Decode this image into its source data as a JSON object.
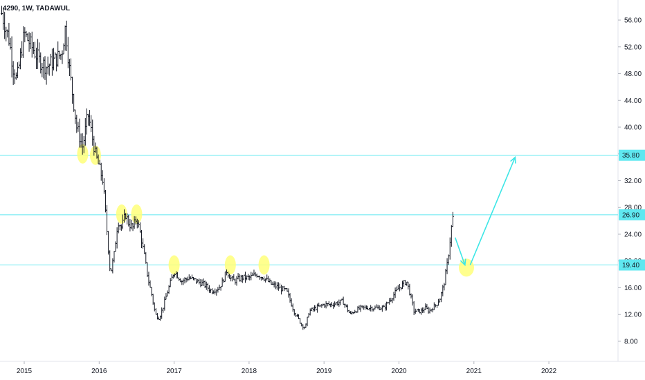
{
  "header": {
    "symbol_label": "4290, 1W, TADAWUL"
  },
  "chart_data": {
    "type": "ohlc",
    "interval": "1W",
    "y_axis": {
      "ticks": [
        "56.00",
        "52.00",
        "48.00",
        "44.00",
        "40.00",
        "36.00",
        "32.00",
        "28.00",
        "24.00",
        "20.00",
        "16.00",
        "12.00",
        "8.00"
      ],
      "ylim": [
        5,
        59
      ]
    },
    "x_axis": {
      "labels": [
        "2015",
        "2016",
        "2017",
        "2018",
        "2019",
        "2020",
        "2021",
        "2022"
      ]
    },
    "horizontal_levels": [
      {
        "value": 35.8,
        "label": "35.80"
      },
      {
        "value": 26.9,
        "label": "26.90"
      },
      {
        "value": 19.4,
        "label": "19.40"
      }
    ],
    "price_path": [
      [
        2014.7,
        57.0
      ],
      [
        2014.8,
        53.0
      ],
      [
        2014.85,
        49.0
      ],
      [
        2014.9,
        47.0
      ],
      [
        2015.0,
        54.0
      ],
      [
        2015.1,
        52.0
      ],
      [
        2015.2,
        50.0
      ],
      [
        2015.3,
        49.0
      ],
      [
        2015.4,
        50.0
      ],
      [
        2015.5,
        51.0
      ],
      [
        2015.55,
        55.0
      ],
      [
        2015.6,
        49.0
      ],
      [
        2015.7,
        40.0
      ],
      [
        2015.78,
        37.0
      ],
      [
        2015.85,
        42.0
      ],
      [
        2015.9,
        39.0
      ],
      [
        2015.95,
        36.0
      ],
      [
        2016.0,
        34.0
      ],
      [
        2016.05,
        32.0
      ],
      [
        2016.1,
        25.0
      ],
      [
        2016.15,
        18.0
      ],
      [
        2016.2,
        21.0
      ],
      [
        2016.25,
        26.0
      ],
      [
        2016.3,
        25.0
      ],
      [
        2016.35,
        27.0
      ],
      [
        2016.4,
        25.5
      ],
      [
        2016.45,
        25.0
      ],
      [
        2016.5,
        26.5
      ],
      [
        2016.55,
        24.0
      ],
      [
        2016.6,
        21.0
      ],
      [
        2016.65,
        17.5
      ],
      [
        2016.7,
        15.0
      ],
      [
        2016.75,
        12.0
      ],
      [
        2016.8,
        11.5
      ],
      [
        2016.85,
        13.0
      ],
      [
        2016.9,
        15.0
      ],
      [
        2017.0,
        18.5
      ],
      [
        2017.1,
        17.0
      ],
      [
        2017.2,
        17.5
      ],
      [
        2017.3,
        17.0
      ],
      [
        2017.4,
        16.5
      ],
      [
        2017.5,
        15.5
      ],
      [
        2017.6,
        16.0
      ],
      [
        2017.65,
        17.0
      ],
      [
        2017.7,
        18.5
      ],
      [
        2017.75,
        17.5
      ],
      [
        2017.8,
        17.0
      ],
      [
        2017.9,
        17.5
      ],
      [
        2018.0,
        17.5
      ],
      [
        2018.1,
        18.0
      ],
      [
        2018.2,
        17.5
      ],
      [
        2018.3,
        16.5
      ],
      [
        2018.4,
        16.0
      ],
      [
        2018.5,
        15.5
      ],
      [
        2018.6,
        12.5
      ],
      [
        2018.7,
        10.5
      ],
      [
        2018.75,
        10.0
      ],
      [
        2018.8,
        12.5
      ],
      [
        2018.9,
        13.0
      ],
      [
        2019.0,
        13.5
      ],
      [
        2019.1,
        13.5
      ],
      [
        2019.2,
        13.8
      ],
      [
        2019.25,
        14.0
      ],
      [
        2019.3,
        13.0
      ],
      [
        2019.35,
        12.0
      ],
      [
        2019.4,
        12.5
      ],
      [
        2019.5,
        13.0
      ],
      [
        2019.6,
        13.0
      ],
      [
        2019.7,
        13.0
      ],
      [
        2019.8,
        13.0
      ],
      [
        2019.9,
        14.5
      ],
      [
        2020.0,
        16.0
      ],
      [
        2020.1,
        17.0
      ],
      [
        2020.15,
        15.0
      ],
      [
        2020.2,
        12.5
      ],
      [
        2020.3,
        12.5
      ],
      [
        2020.35,
        13.0
      ],
      [
        2020.4,
        12.5
      ],
      [
        2020.45,
        13.0
      ],
      [
        2020.5,
        13.5
      ],
      [
        2020.55,
        14.5
      ],
      [
        2020.6,
        16.5
      ],
      [
        2020.65,
        20.0
      ],
      [
        2020.7,
        25.0
      ],
      [
        2020.72,
        26.5
      ]
    ],
    "annotations": {
      "highlight_ellipses": [
        [
          2015.78,
          36.0
        ],
        [
          2015.95,
          35.8
        ],
        [
          2016.3,
          27.0
        ],
        [
          2016.5,
          27.0
        ],
        [
          2017.0,
          19.4
        ],
        [
          2017.75,
          19.4
        ],
        [
          2018.2,
          19.4
        ],
        [
          2020.9,
          19.0
        ]
      ],
      "arrows": [
        {
          "from": [
            2020.75,
            23.5
          ],
          "to": [
            2020.88,
            19.4
          ]
        },
        {
          "from": [
            2020.95,
            19.4
          ],
          "to": [
            2021.55,
            35.5
          ]
        }
      ]
    },
    "colors": {
      "bars": "#131722",
      "level_lines": "#5fe8f0",
      "level_tag": "#5fe8f0",
      "arrow": "#3de6e6",
      "highlight": "#ffff7a"
    }
  }
}
